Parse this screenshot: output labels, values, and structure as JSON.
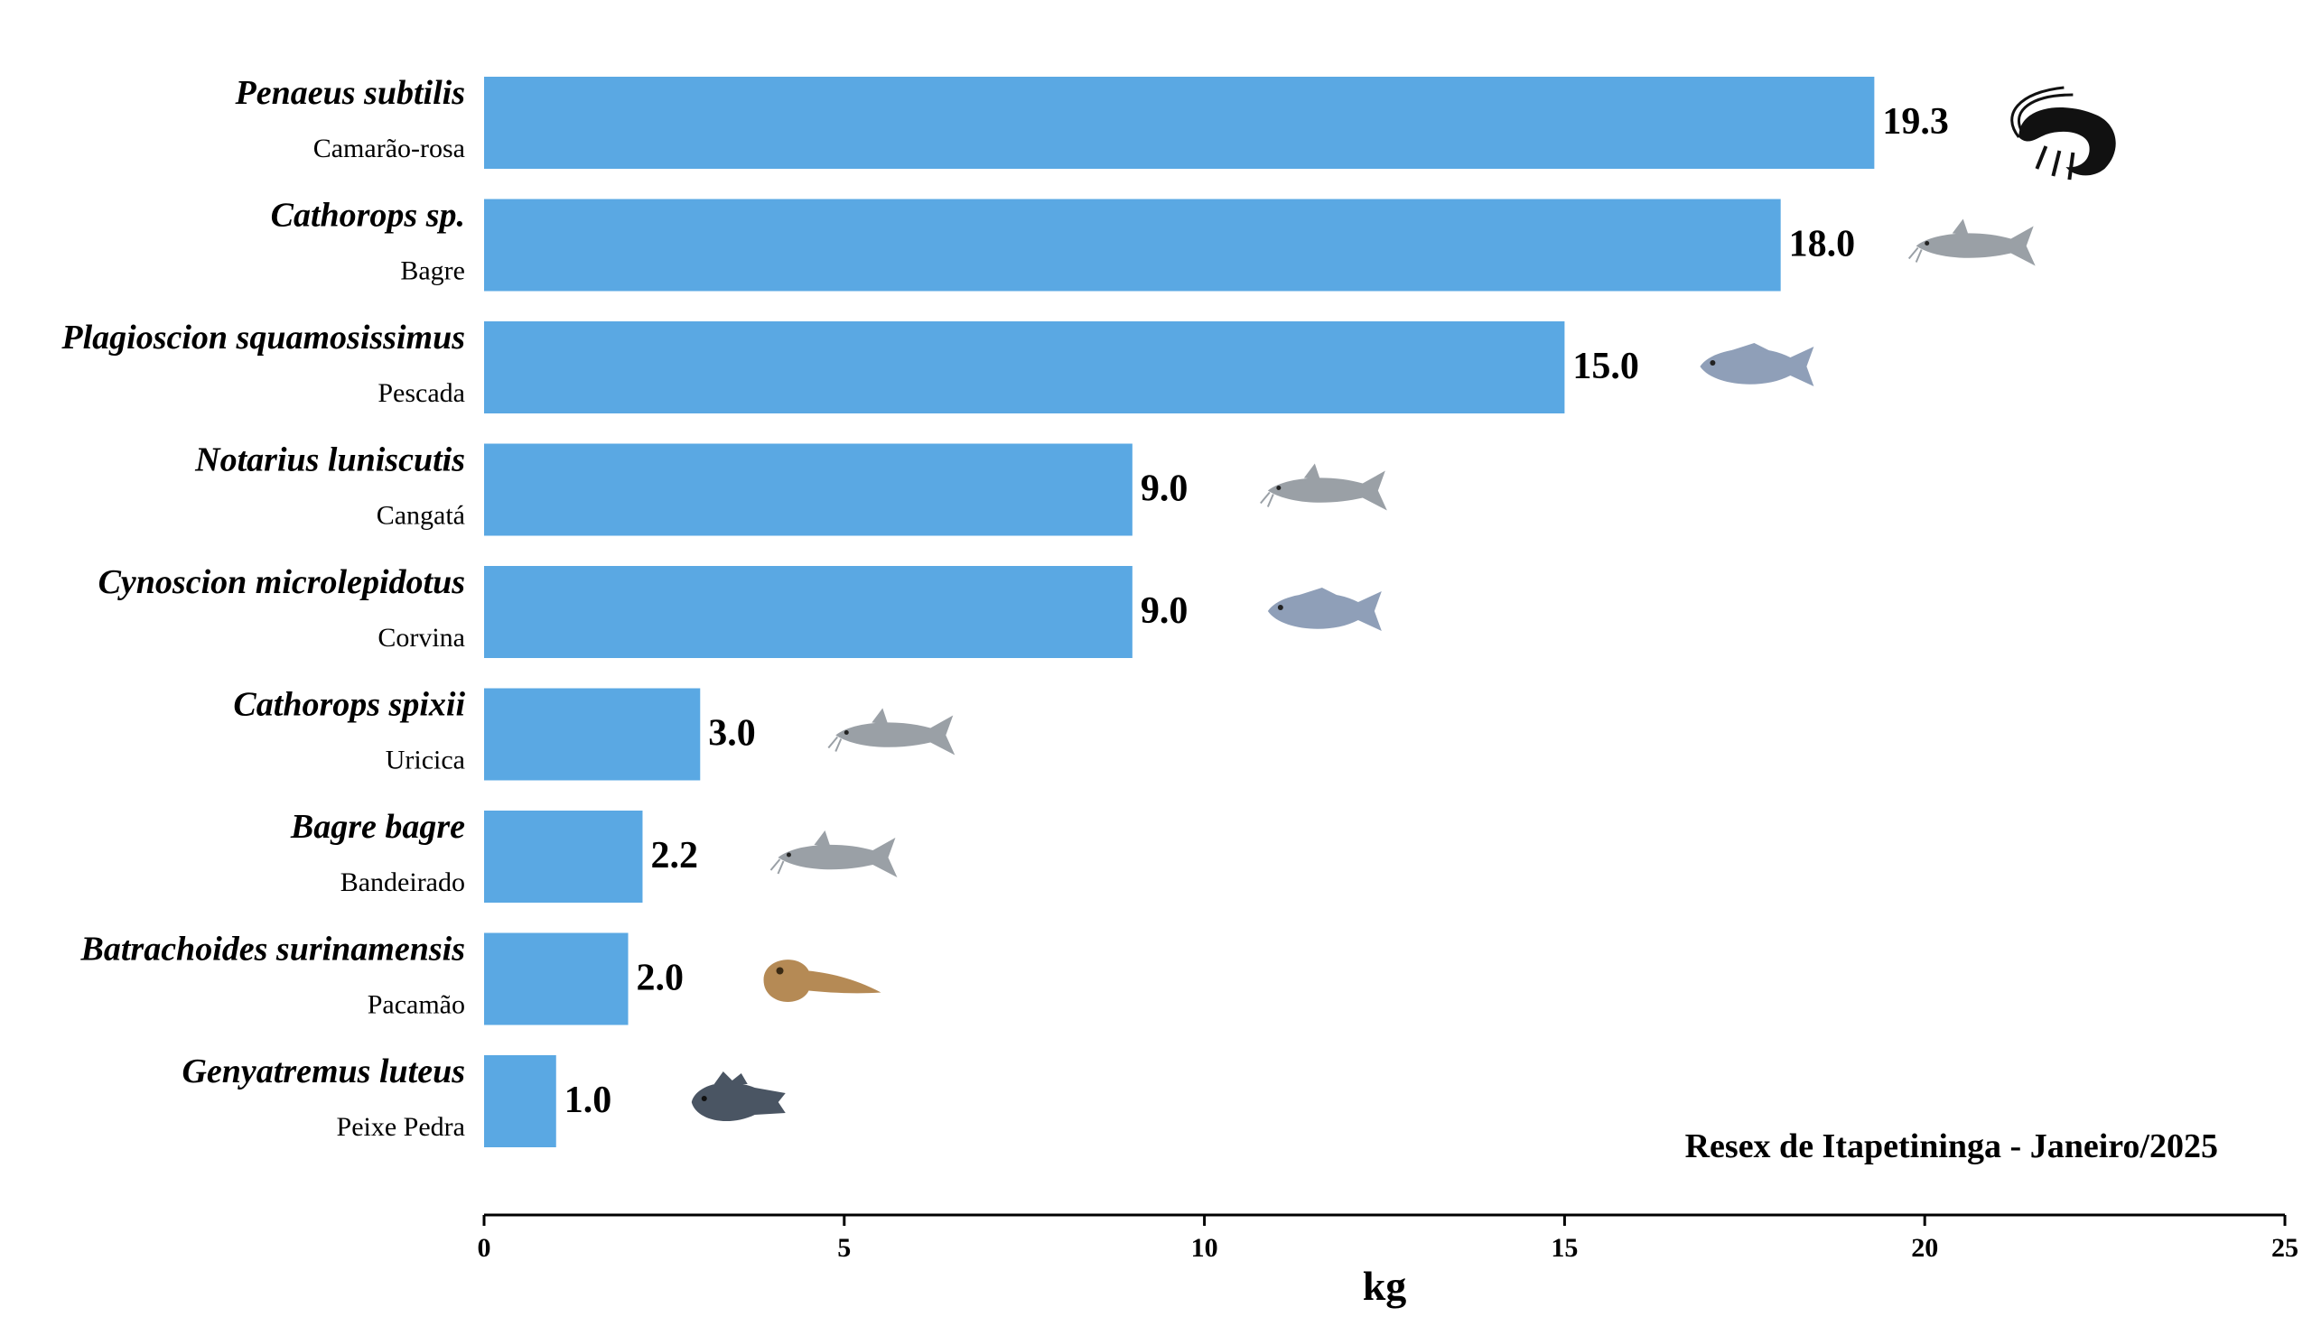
{
  "chart_data": {
    "type": "bar",
    "orientation": "horizontal",
    "categories": [
      {
        "scientific": "Penaeus subtilis",
        "common": "Camarão-rosa",
        "icon": "shrimp-icon"
      },
      {
        "scientific": "Cathorops sp.",
        "common": "Bagre",
        "icon": "catfish-icon"
      },
      {
        "scientific": "Plagioscion squamosissimus",
        "common": "Pescada",
        "icon": "croaker-icon"
      },
      {
        "scientific": "Notarius luniscutis",
        "common": "Cangatá",
        "icon": "catfish-icon"
      },
      {
        "scientific": "Cynoscion microlepidotus",
        "common": "Corvina",
        "icon": "croaker-icon"
      },
      {
        "scientific": "Cathorops spixii",
        "common": "Uricica",
        "icon": "catfish-icon"
      },
      {
        "scientific": "Bagre bagre",
        "common": "Bandeirado",
        "icon": "catfish-icon"
      },
      {
        "scientific": "Batrachoides surinamensis",
        "common": "Pacamão",
        "icon": "toadfish-icon"
      },
      {
        "scientific": "Genyatremus luteus",
        "common": "Peixe Pedra",
        "icon": "grunt-icon"
      }
    ],
    "values": [
      19.3,
      18.0,
      15.0,
      9.0,
      9.0,
      3.0,
      2.2,
      2.0,
      1.0
    ],
    "value_labels": [
      "19.3",
      "18.0",
      "15.0",
      "9.0",
      "9.0",
      "3.0",
      "2.2",
      "2.0",
      "1.0"
    ],
    "xlabel": "kg",
    "ylabel": "",
    "xlim": [
      0,
      25
    ],
    "xticks": [
      "0",
      "5",
      "10",
      "15",
      "20",
      "25"
    ],
    "grid": false,
    "annotation": "Resex de Itapetininga - Janeiro/2025",
    "bar_color": "#5aa8e3",
    "icon_colors": {
      "shrimp-icon": "#111111",
      "catfish-icon": "#9aa0a6",
      "croaker-icon": "#8f9fb8",
      "toadfish-icon": "#b58a55",
      "grunt-icon": "#4a5563"
    }
  }
}
